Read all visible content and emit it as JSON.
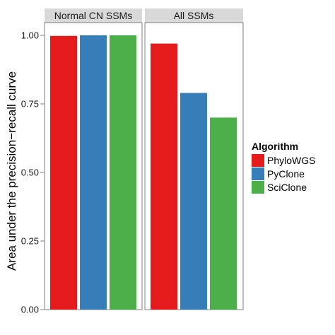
{
  "chart_data": {
    "type": "bar",
    "ylabel": "Area under the precision−recall curve",
    "ylim": [
      0,
      1
    ],
    "yticks": [
      "0.00",
      "0.25",
      "0.50",
      "0.75",
      "1.00"
    ],
    "ytick_values": [
      0,
      0.25,
      0.5,
      0.75,
      1.0
    ],
    "grid": false,
    "legend": {
      "title": "Algorithm",
      "position": "right",
      "entries": [
        "PhyloWGS",
        "PyClone",
        "SciClone"
      ]
    },
    "colors": {
      "PhyloWGS": "#e41a1c",
      "PyClone": "#377eb8",
      "SciClone": "#4daf4a"
    },
    "facets": [
      {
        "label": "Normal CN SSMs",
        "series": [
          {
            "name": "PhyloWGS",
            "value": 0.998
          },
          {
            "name": "PyClone",
            "value": 1.0
          },
          {
            "name": "SciClone",
            "value": 1.0
          }
        ]
      },
      {
        "label": "All SSMs",
        "series": [
          {
            "name": "PhyloWGS",
            "value": 0.97
          },
          {
            "name": "PyClone",
            "value": 0.79
          },
          {
            "name": "SciClone",
            "value": 0.7
          }
        ]
      }
    ]
  }
}
